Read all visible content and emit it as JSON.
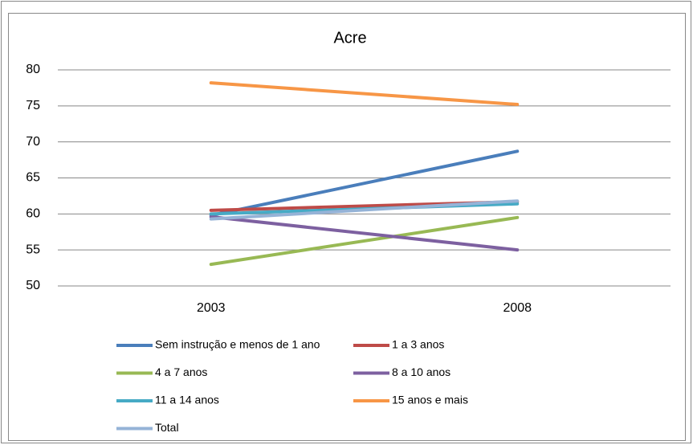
{
  "chart_data": {
    "type": "line",
    "title": "Acre",
    "categories": [
      "2003",
      "2008"
    ],
    "series": [
      {
        "name": "Sem instrução e menos de 1 ano",
        "color": "#4a7ebb",
        "values": [
          59.8,
          68.7
        ]
      },
      {
        "name": "1 a 3 anos",
        "color": "#be4b48",
        "values": [
          60.5,
          61.7
        ]
      },
      {
        "name": "4 a 7 anos",
        "color": "#98b954",
        "values": [
          53.0,
          59.5
        ]
      },
      {
        "name": "8 a 10 anos",
        "color": "#7d60a0",
        "values": [
          59.6,
          55.0
        ]
      },
      {
        "name": "11 a 14 anos",
        "color": "#46aac5",
        "values": [
          60.0,
          61.4
        ]
      },
      {
        "name": "15 anos e mais",
        "color": "#f79646",
        "values": [
          78.2,
          75.2
        ]
      },
      {
        "name": "Total",
        "color": "#95b3d7",
        "values": [
          59.3,
          61.8
        ]
      }
    ],
    "ylim": [
      50,
      80
    ],
    "yticks": [
      50,
      55,
      60,
      65,
      70,
      75,
      80
    ],
    "grid": true
  }
}
